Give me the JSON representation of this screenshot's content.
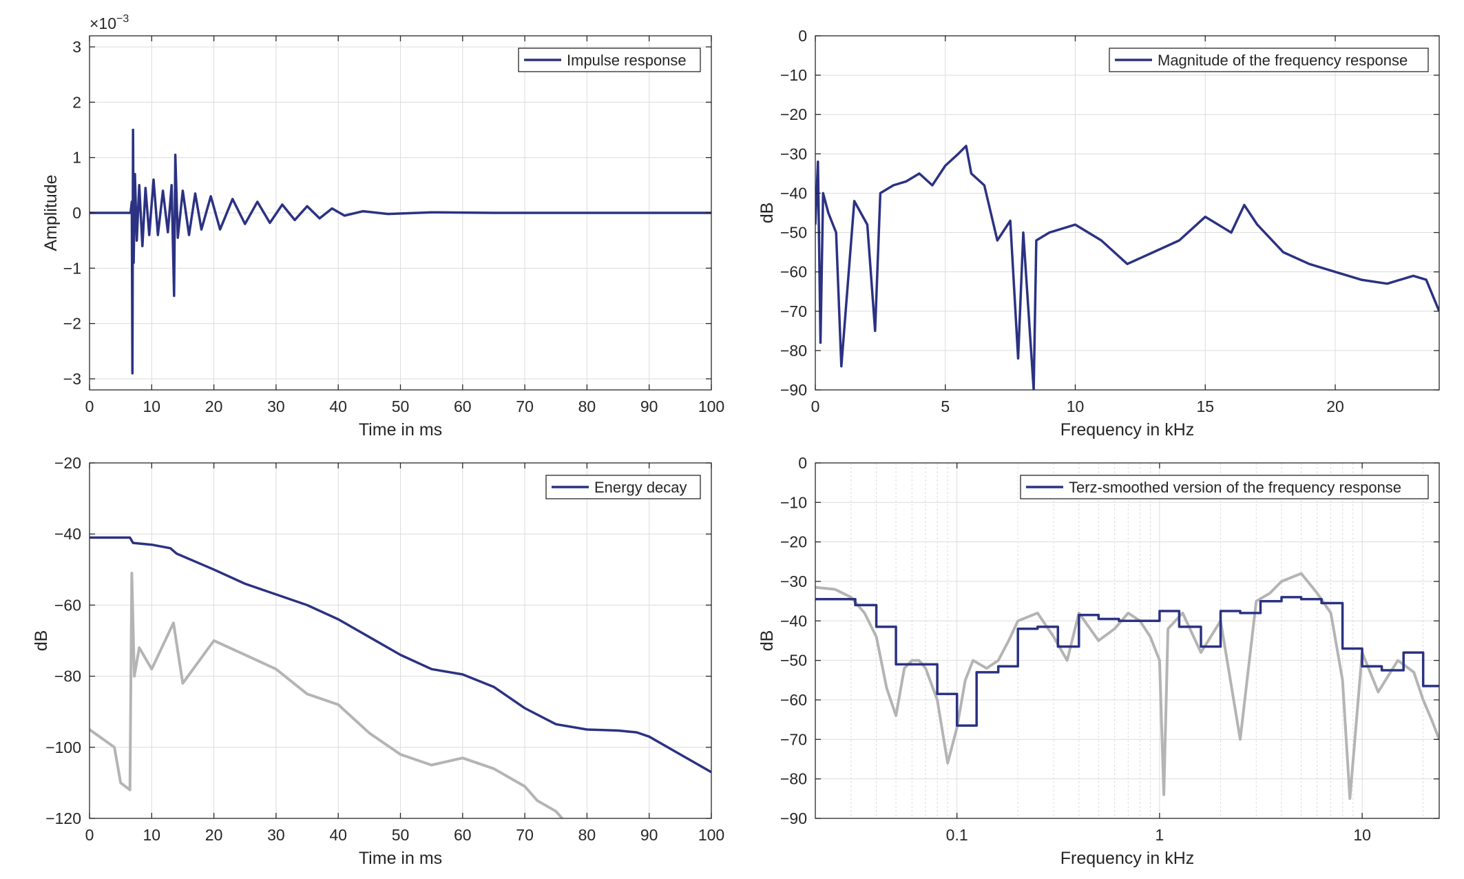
{
  "figure": {
    "background": "#ffffff",
    "axis_color": "#262626",
    "grid_color": "#dcdcdc"
  },
  "colors": {
    "primary": "#2b3282",
    "secondary": "#b4b4b4"
  },
  "chart_data": [
    {
      "id": "impulse",
      "type": "line",
      "xlabel": "Time in ms",
      "ylabel": "Amplitude",
      "exponent_label": "×10",
      "exponent_power": "-3",
      "xlim": [
        0,
        100
      ],
      "ylim": [
        -3.2,
        3.2
      ],
      "xticks": [
        0,
        10,
        20,
        30,
        40,
        50,
        60,
        70,
        80,
        90,
        100
      ],
      "yticks": [
        -3,
        -2,
        -1,
        0,
        1,
        2,
        3
      ],
      "xscale": "linear",
      "grid": true,
      "legend_position": "top-right",
      "series": [
        {
          "name": "Impulse response",
          "color": "#2b3282",
          "x": [
            0,
            6.6,
            6.8,
            6.9,
            7.0,
            7.1,
            7.3,
            7.6,
            8.0,
            8.5,
            9.0,
            9.6,
            10.3,
            11.0,
            11.8,
            12.6,
            13.2,
            13.6,
            13.8,
            14.2,
            15.0,
            16.0,
            17.0,
            18.0,
            19.5,
            21,
            23,
            25,
            27,
            29,
            31,
            33,
            35,
            37,
            39,
            41,
            44,
            48,
            55,
            65,
            80,
            100
          ],
          "y": [
            0,
            0,
            0.2,
            -2.9,
            1.5,
            -0.9,
            0.7,
            -0.5,
            0.5,
            -0.6,
            0.45,
            -0.4,
            0.6,
            -0.4,
            0.4,
            -0.35,
            0.5,
            -1.5,
            1.05,
            -0.45,
            0.4,
            -0.4,
            0.35,
            -0.3,
            0.3,
            -0.3,
            0.25,
            -0.2,
            0.2,
            -0.18,
            0.15,
            -0.13,
            0.12,
            -0.1,
            0.08,
            -0.05,
            0.03,
            -0.02,
            0.01,
            0,
            0,
            0
          ]
        }
      ]
    },
    {
      "id": "magnitude",
      "type": "line",
      "xlabel": "Frequency in kHz",
      "ylabel": "dB",
      "xlim": [
        0,
        24
      ],
      "ylim": [
        -90,
        0
      ],
      "xticks": [
        0,
        5,
        10,
        15,
        20
      ],
      "yticks": [
        -90,
        -80,
        -70,
        -60,
        -50,
        -40,
        -30,
        -20,
        -10,
        0
      ],
      "xscale": "linear",
      "grid": true,
      "legend_position": "top-right",
      "series": [
        {
          "name": "Magnitude of the frequency response",
          "color": "#2b3282",
          "x": [
            0,
            0.1,
            0.2,
            0.3,
            0.5,
            0.8,
            1.0,
            1.5,
            2.0,
            2.3,
            2.5,
            3.0,
            3.5,
            4.0,
            4.5,
            5.0,
            5.5,
            5.8,
            6.0,
            6.5,
            7.0,
            7.5,
            7.8,
            8.0,
            8.4,
            8.5,
            9.0,
            10,
            11,
            12,
            13,
            14,
            15,
            16,
            16.5,
            17,
            18,
            19,
            20,
            21,
            22,
            23,
            23.5,
            24
          ],
          "y": [
            -48,
            -32,
            -78,
            -40,
            -45,
            -50,
            -84,
            -42,
            -48,
            -75,
            -40,
            -38,
            -37,
            -35,
            -38,
            -33,
            -30,
            -28,
            -35,
            -38,
            -52,
            -47,
            -82,
            -50,
            -90,
            -52,
            -50,
            -48,
            -52,
            -58,
            -55,
            -52,
            -46,
            -50,
            -43,
            -48,
            -55,
            -58,
            -60,
            -62,
            -63,
            -61,
            -62,
            -70
          ]
        }
      ]
    },
    {
      "id": "energy",
      "type": "line",
      "xlabel": "Time in ms",
      "ylabel": "dB",
      "xlim": [
        0,
        100
      ],
      "ylim": [
        -120,
        -20
      ],
      "xticks": [
        0,
        10,
        20,
        30,
        40,
        50,
        60,
        70,
        80,
        90,
        100
      ],
      "yticks": [
        -120,
        -100,
        -80,
        -60,
        -40,
        -20
      ],
      "xscale": "linear",
      "grid": true,
      "legend_position": "top-right",
      "series": [
        {
          "name": "Energy decay",
          "color": "#2b3282",
          "x": [
            0,
            6.5,
            7,
            10,
            13,
            14,
            20,
            25,
            30,
            35,
            40,
            45,
            50,
            55,
            60,
            65,
            70,
            75,
            80,
            85,
            88,
            90,
            95,
            100
          ],
          "y": [
            -41,
            -41,
            -42.5,
            -43,
            -44,
            -45.5,
            -50,
            -54,
            -57,
            -60,
            -64,
            -69,
            -74,
            -78,
            -79.5,
            -83,
            -89,
            -93.5,
            -95,
            -95.3,
            -95.8,
            -97,
            -102,
            -107
          ]
        },
        {
          "color": "#b4b4b4",
          "x": [
            0,
            4,
            5,
            6.5,
            6.8,
            7.2,
            8,
            10,
            13.5,
            15,
            20,
            25,
            30,
            35,
            40,
            45,
            50,
            55,
            60,
            65,
            70,
            72,
            75,
            76
          ],
          "y": [
            -95,
            -100,
            -110,
            -112,
            -51,
            -80,
            -72,
            -78,
            -65,
            -82,
            -70,
            -74,
            -78,
            -85,
            -88,
            -96,
            -102,
            -105,
            -103,
            -106,
            -111,
            -115,
            -118,
            -120
          ]
        }
      ]
    },
    {
      "id": "terz",
      "type": "line",
      "xlabel": "Frequency in kHz",
      "ylabel": "dB",
      "xlim": [
        0.02,
        24
      ],
      "ylim": [
        -90,
        0
      ],
      "xticks": [
        0.1,
        1,
        10
      ],
      "xtick_labels": [
        "0.1",
        "1",
        "10"
      ],
      "yticks": [
        -90,
        -80,
        -70,
        -60,
        -50,
        -40,
        -30,
        -20,
        -10,
        0
      ],
      "xscale": "log",
      "grid": true,
      "legend_position": "top-right",
      "series": [
        {
          "name": "Terz-smoothed version of the frequency response",
          "color": "#2b3282",
          "step": true,
          "x": [
            0.02,
            0.0315,
            0.04,
            0.05,
            0.063,
            0.08,
            0.1,
            0.125,
            0.16,
            0.2,
            0.25,
            0.315,
            0.4,
            0.5,
            0.63,
            0.8,
            1.0,
            1.25,
            1.6,
            2.0,
            2.5,
            3.15,
            4.0,
            5.0,
            6.3,
            8.0,
            10,
            12.5,
            16,
            20,
            24
          ],
          "y": [
            -34.5,
            -36,
            -41.5,
            -51,
            -51,
            -58.5,
            -66.5,
            -53,
            -51.5,
            -42,
            -41.5,
            -46.5,
            -38.5,
            -39.5,
            -40,
            -40,
            -37.5,
            -41.5,
            -46.5,
            -37.5,
            -38,
            -35,
            -34,
            -34.5,
            -35.5,
            -47,
            -51.5,
            -52.5,
            -48,
            -56.5,
            -56.5
          ]
        },
        {
          "color": "#b4b4b4",
          "x": [
            0.02,
            0.025,
            0.03,
            0.035,
            0.04,
            0.045,
            0.05,
            0.055,
            0.06,
            0.065,
            0.07,
            0.08,
            0.09,
            0.1,
            0.11,
            0.12,
            0.14,
            0.16,
            0.18,
            0.2,
            0.25,
            0.3,
            0.35,
            0.4,
            0.5,
            0.6,
            0.7,
            0.8,
            0.9,
            1.0,
            1.05,
            1.1,
            1.3,
            1.6,
            2.0,
            2.5,
            3.0,
            3.5,
            4.0,
            5.0,
            6.0,
            7.0,
            8.0,
            8.7,
            10,
            12,
            15,
            18,
            20,
            22,
            24
          ],
          "y": [
            -31.5,
            -32,
            -34,
            -38,
            -44,
            -57,
            -64,
            -52,
            -50,
            -50,
            -52,
            -60,
            -76,
            -67,
            -55,
            -50,
            -52,
            -50,
            -45,
            -40,
            -38,
            -44,
            -50,
            -38,
            -45,
            -42,
            -38,
            -40,
            -44,
            -50,
            -84,
            -42,
            -38,
            -48,
            -40,
            -70,
            -35,
            -33,
            -30,
            -28,
            -33,
            -38,
            -55,
            -85,
            -48,
            -58,
            -50,
            -53,
            -60,
            -65,
            -70
          ]
        }
      ]
    }
  ]
}
